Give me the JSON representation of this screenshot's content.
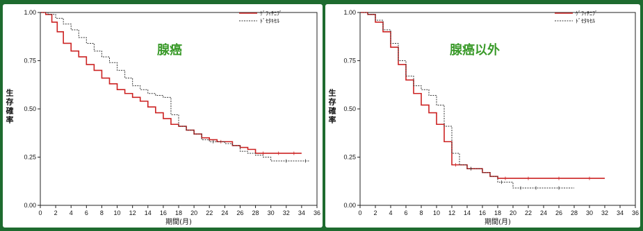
{
  "chart_data": [
    {
      "type": "line",
      "title": "腺癌",
      "ylabel": "生存確率",
      "xlabel": "期間(月)",
      "xlim": [
        0,
        36
      ],
      "ylim": [
        0,
        1
      ],
      "x_ticks": [
        "0",
        "2",
        "4",
        "6",
        "8",
        "10",
        "12",
        "14",
        "16",
        "18",
        "20",
        "22",
        "24",
        "26",
        "28",
        "30",
        "32",
        "34",
        "36"
      ],
      "y_ticks": [
        "0.00",
        "0.25",
        "0.50",
        "0.75",
        "1.00"
      ],
      "legend_position": "top-right",
      "series": [
        {
          "name": "ｹﾞﾌｨﾁﾆﾌﾞ",
          "color": "#cc2222",
          "style": "solid",
          "points": [
            [
              0,
              1.0
            ],
            [
              0.7,
              0.99
            ],
            [
              1.5,
              0.95
            ],
            [
              2.2,
              0.9
            ],
            [
              3,
              0.84
            ],
            [
              4,
              0.8
            ],
            [
              5,
              0.77
            ],
            [
              6,
              0.73
            ],
            [
              7,
              0.7
            ],
            [
              8,
              0.66
            ],
            [
              9,
              0.63
            ],
            [
              10,
              0.6
            ],
            [
              11,
              0.58
            ],
            [
              12,
              0.56
            ],
            [
              13,
              0.54
            ],
            [
              14,
              0.51
            ],
            [
              15,
              0.48
            ],
            [
              16,
              0.45
            ],
            [
              17,
              0.42
            ],
            [
              18,
              0.41
            ],
            [
              19,
              0.39
            ],
            [
              20,
              0.37
            ],
            [
              21,
              0.35
            ],
            [
              22,
              0.34
            ],
            [
              23,
              0.33
            ],
            [
              24,
              0.33
            ],
            [
              25,
              0.31
            ],
            [
              26,
              0.3
            ],
            [
              27,
              0.29
            ],
            [
              28,
              0.27
            ],
            [
              30,
              0.27
            ],
            [
              32,
              0.27
            ],
            [
              34,
              0.27
            ]
          ]
        },
        {
          "name": "ﾄﾞｾﾀｷｾﾙ",
          "color": "#333333",
          "style": "dashed",
          "points": [
            [
              0,
              1.0
            ],
            [
              1,
              0.99
            ],
            [
              2,
              0.97
            ],
            [
              3,
              0.94
            ],
            [
              4,
              0.91
            ],
            [
              5,
              0.87
            ],
            [
              6,
              0.84
            ],
            [
              7,
              0.8
            ],
            [
              8,
              0.77
            ],
            [
              9,
              0.74
            ],
            [
              10,
              0.7
            ],
            [
              11,
              0.66
            ],
            [
              12,
              0.62
            ],
            [
              13,
              0.6
            ],
            [
              14,
              0.58
            ],
            [
              15,
              0.57
            ],
            [
              16,
              0.56
            ],
            [
              17,
              0.47
            ],
            [
              18,
              0.41
            ],
            [
              19,
              0.39
            ],
            [
              20,
              0.37
            ],
            [
              21,
              0.34
            ],
            [
              22,
              0.33
            ],
            [
              23,
              0.33
            ],
            [
              24,
              0.32
            ],
            [
              25,
              0.31
            ],
            [
              26,
              0.28
            ],
            [
              27,
              0.27
            ],
            [
              28,
              0.26
            ],
            [
              29,
              0.25
            ],
            [
              30,
              0.23
            ],
            [
              34,
              0.23
            ],
            [
              35,
              0.23
            ]
          ]
        }
      ]
    },
    {
      "type": "line",
      "title": "腺癌以外",
      "ylabel": "生存確率",
      "xlabel": "期間(月)",
      "xlim": [
        0,
        36
      ],
      "ylim": [
        0,
        1
      ],
      "x_ticks": [
        "0",
        "2",
        "4",
        "6",
        "8",
        "10",
        "12",
        "14",
        "16",
        "18",
        "20",
        "22",
        "24",
        "26",
        "28",
        "30",
        "32",
        "34",
        "36"
      ],
      "y_ticks": [
        "0.00",
        "0.25",
        "0.50",
        "0.75",
        "1.00"
      ],
      "legend_position": "top-right",
      "series": [
        {
          "name": "ｹﾞﾌｨﾁﾆﾌﾞ",
          "color": "#cc2222",
          "style": "solid",
          "points": [
            [
              0,
              1.0
            ],
            [
              1,
              0.99
            ],
            [
              2,
              0.95
            ],
            [
              3,
              0.9
            ],
            [
              4,
              0.82
            ],
            [
              5,
              0.73
            ],
            [
              6,
              0.65
            ],
            [
              7,
              0.58
            ],
            [
              8,
              0.52
            ],
            [
              9,
              0.48
            ],
            [
              10,
              0.42
            ],
            [
              11,
              0.33
            ],
            [
              12,
              0.21
            ],
            [
              13,
              0.21
            ],
            [
              14,
              0.19
            ],
            [
              15,
              0.19
            ],
            [
              16,
              0.17
            ],
            [
              17,
              0.15
            ],
            [
              18,
              0.14
            ],
            [
              20,
              0.14
            ],
            [
              24,
              0.14
            ],
            [
              28,
              0.14
            ],
            [
              32,
              0.14
            ]
          ]
        },
        {
          "name": "ﾄﾞｾﾀｷｾﾙ",
          "color": "#333333",
          "style": "dashed",
          "points": [
            [
              0,
              1.0
            ],
            [
              1,
              0.99
            ],
            [
              2,
              0.96
            ],
            [
              3,
              0.91
            ],
            [
              4,
              0.84
            ],
            [
              5,
              0.75
            ],
            [
              6,
              0.67
            ],
            [
              7,
              0.62
            ],
            [
              8,
              0.6
            ],
            [
              9,
              0.57
            ],
            [
              10,
              0.52
            ],
            [
              11,
              0.41
            ],
            [
              12,
              0.27
            ],
            [
              13,
              0.21
            ],
            [
              14,
              0.19
            ],
            [
              15,
              0.19
            ],
            [
              16,
              0.17
            ],
            [
              17,
              0.15
            ],
            [
              18,
              0.12
            ],
            [
              19,
              0.12
            ],
            [
              20,
              0.09
            ],
            [
              22,
              0.09
            ],
            [
              24,
              0.09
            ],
            [
              28,
              0.09
            ]
          ]
        }
      ]
    }
  ]
}
